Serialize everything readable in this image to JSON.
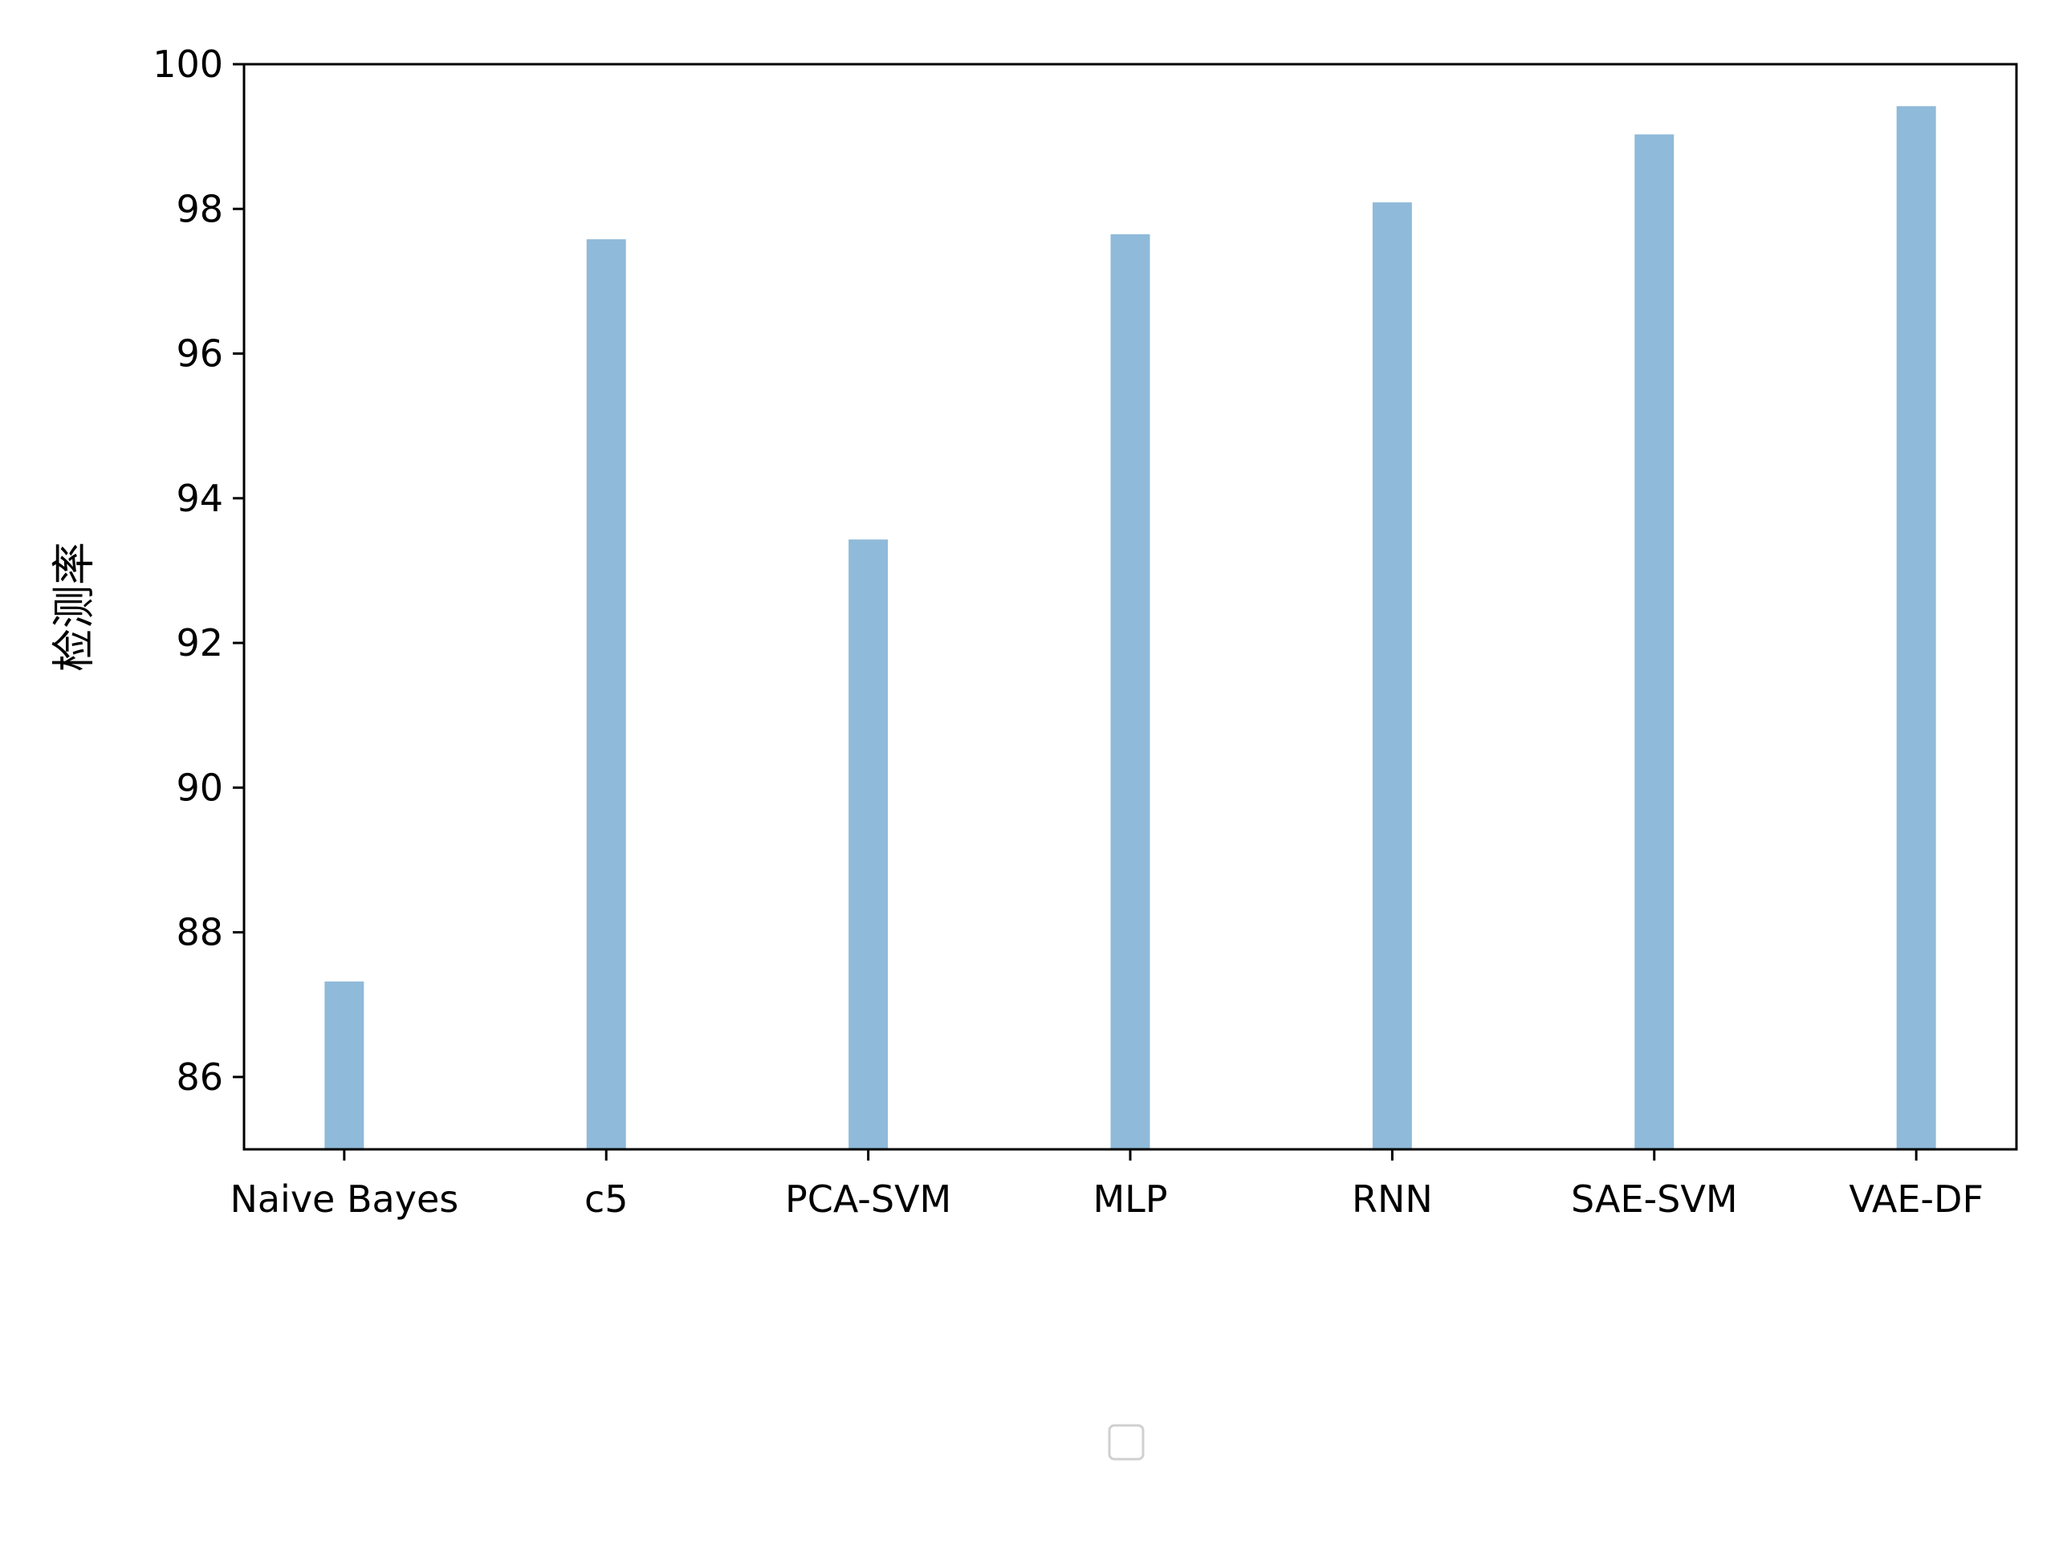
{
  "chart_data": {
    "type": "bar",
    "categories": [
      "Naive Bayes",
      "c5",
      "PCA-SVM",
      "MLP",
      "RNN",
      "SAE-SVM",
      "VAE-DF"
    ],
    "values": [
      87.32,
      97.58,
      93.43,
      97.65,
      98.09,
      99.03,
      99.42
    ],
    "title": "",
    "xlabel": "",
    "ylabel": "检测率",
    "ylim": [
      85,
      100
    ],
    "yticks": [
      86,
      88,
      90,
      92,
      94,
      96,
      98,
      100
    ],
    "bar_color": "#8fbad9",
    "grid": false,
    "legend": {
      "placement": "bottom-center",
      "entries": []
    }
  }
}
